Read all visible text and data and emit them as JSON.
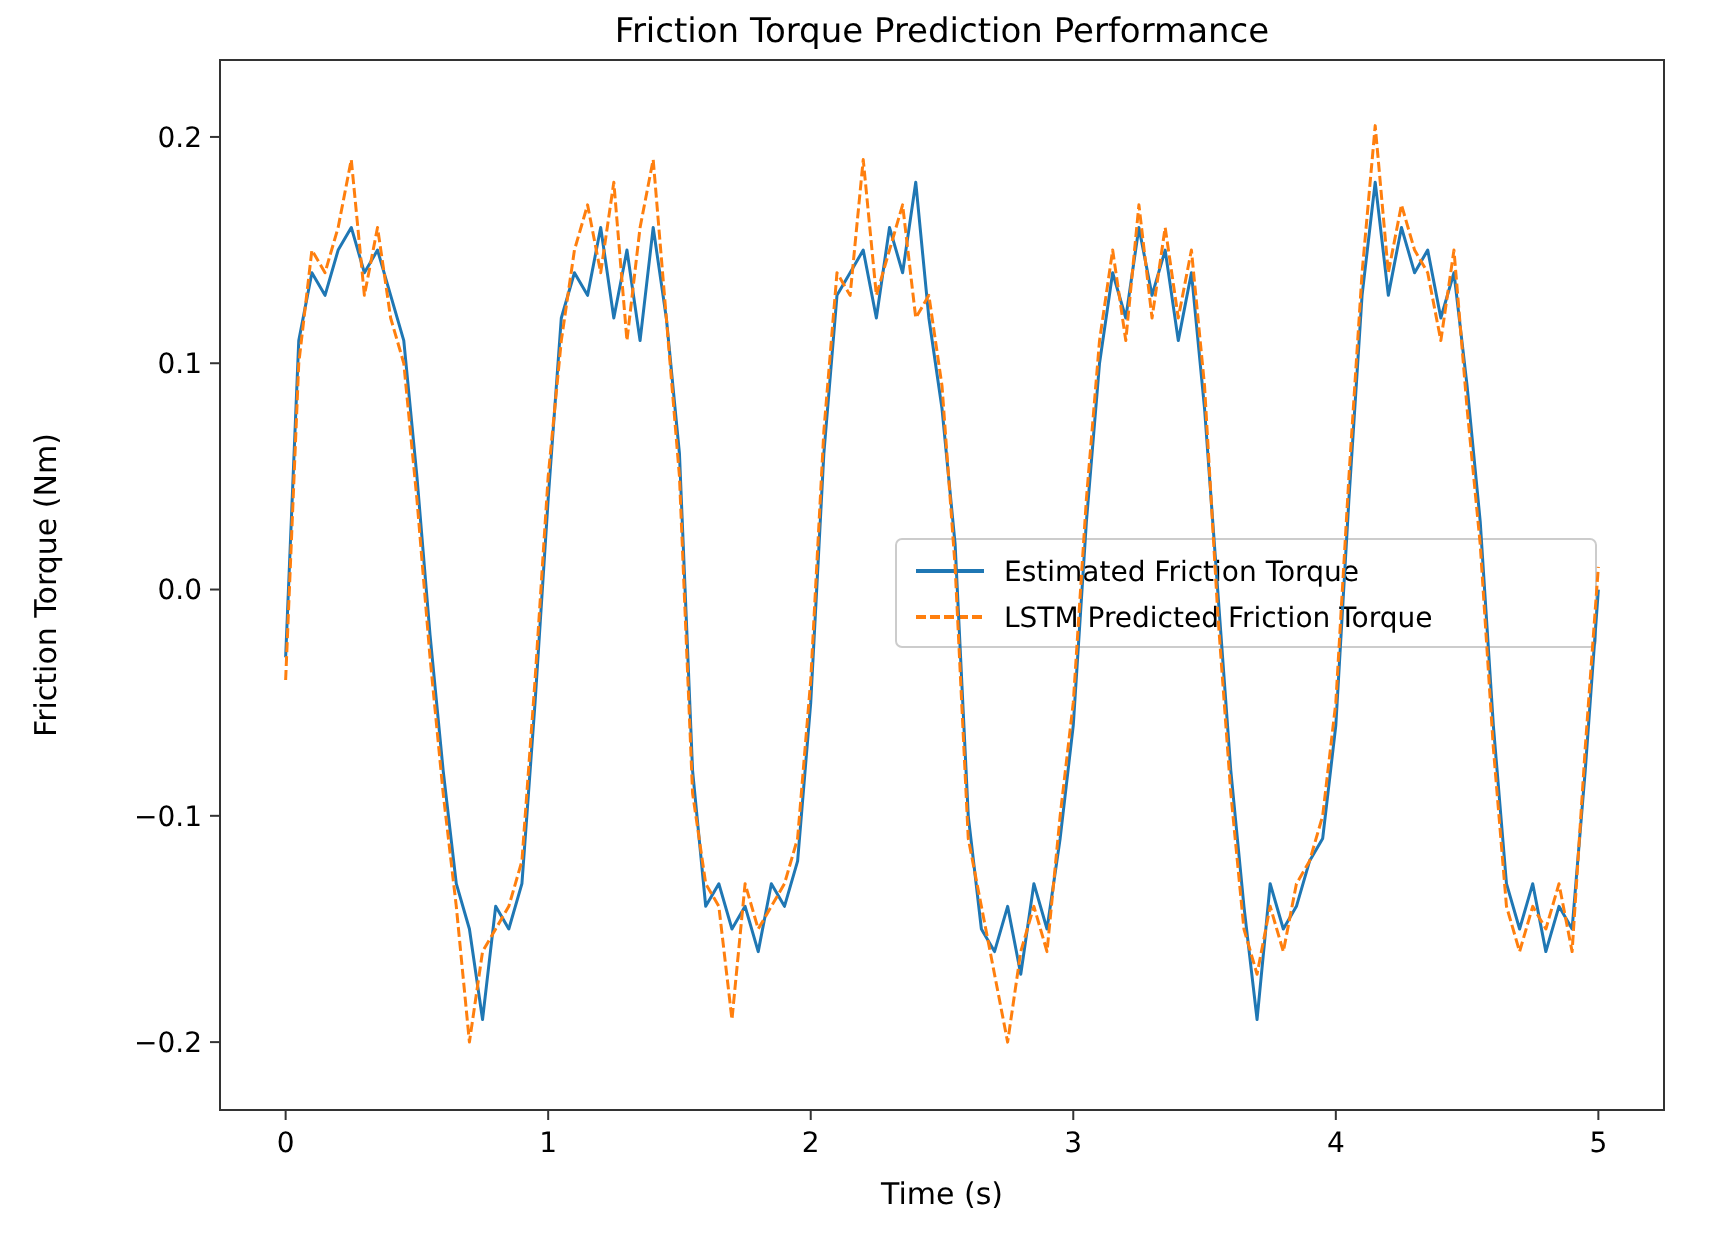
{
  "chart_data": {
    "type": "line",
    "title": "Friction Torque Prediction Performance",
    "xlabel": "Time (s)",
    "ylabel": "Friction Torque (Nm)",
    "x": [
      0,
      0.05,
      0.1,
      0.15,
      0.2,
      0.25,
      0.3,
      0.35,
      0.4,
      0.45,
      0.5,
      0.55,
      0.6,
      0.65,
      0.7,
      0.75,
      0.8,
      0.85,
      0.9,
      0.95,
      1,
      1.05,
      1.1,
      1.15,
      1.2,
      1.25,
      1.3,
      1.35,
      1.4,
      1.45,
      1.5,
      1.55,
      1.6,
      1.65,
      1.7,
      1.75,
      1.8,
      1.85,
      1.9,
      1.95,
      2,
      2.05,
      2.1,
      2.15,
      2.2,
      2.25,
      2.3,
      2.35,
      2.4,
      2.45,
      2.5,
      2.55,
      2.6,
      2.65,
      2.7,
      2.75,
      2.8,
      2.85,
      2.9,
      2.95,
      3,
      3.05,
      3.1,
      3.15,
      3.2,
      3.25,
      3.3,
      3.35,
      3.4,
      3.45,
      3.5,
      3.55,
      3.6,
      3.65,
      3.7,
      3.75,
      3.8,
      3.85,
      3.9,
      3.95,
      4,
      4.05,
      4.1,
      4.15,
      4.2,
      4.25,
      4.3,
      4.35,
      4.4,
      4.45,
      4.5,
      4.55,
      4.6,
      4.65,
      4.7,
      4.75,
      4.8,
      4.85,
      4.9,
      4.95,
      5
    ],
    "series": [
      {
        "name": "Estimated Friction Torque",
        "color": "#1f77b4",
        "line_style": "solid",
        "values": [
          -0.03,
          0.11,
          0.14,
          0.13,
          0.15,
          0.16,
          0.14,
          0.15,
          0.13,
          0.11,
          0.05,
          -0.02,
          -0.08,
          -0.13,
          -0.15,
          -0.19,
          -0.14,
          -0.15,
          -0.13,
          -0.05,
          0.04,
          0.12,
          0.14,
          0.13,
          0.16,
          0.12,
          0.15,
          0.11,
          0.16,
          0.12,
          0.06,
          -0.08,
          -0.14,
          -0.13,
          -0.15,
          -0.14,
          -0.16,
          -0.13,
          -0.14,
          -0.12,
          -0.05,
          0.06,
          0.13,
          0.14,
          0.15,
          0.12,
          0.16,
          0.14,
          0.18,
          0.12,
          0.08,
          0.02,
          -0.1,
          -0.15,
          -0.16,
          -0.14,
          -0.17,
          -0.13,
          -0.15,
          -0.11,
          -0.06,
          0.03,
          0.1,
          0.14,
          0.12,
          0.16,
          0.13,
          0.15,
          0.11,
          0.14,
          0.08,
          0,
          -0.08,
          -0.14,
          -0.19,
          -0.13,
          -0.15,
          -0.14,
          -0.12,
          -0.11,
          -0.06,
          0.04,
          0.13,
          0.18,
          0.13,
          0.16,
          0.14,
          0.15,
          0.12,
          0.14,
          0.09,
          0.03,
          -0.06,
          -0.13,
          -0.15,
          -0.13,
          -0.16,
          -0.14,
          -0.15,
          -0.08,
          0
        ]
      },
      {
        "name": "LSTM Predicted Friction Torque",
        "color": "#ff7f0e",
        "line_style": "dashed",
        "values": [
          -0.04,
          0.1,
          0.15,
          0.14,
          0.16,
          0.19,
          0.13,
          0.16,
          0.12,
          0.1,
          0.04,
          -0.03,
          -0.09,
          -0.14,
          -0.2,
          -0.16,
          -0.15,
          -0.14,
          -0.12,
          -0.04,
          0.05,
          0.11,
          0.15,
          0.17,
          0.14,
          0.18,
          0.11,
          0.16,
          0.19,
          0.12,
          0.05,
          -0.09,
          -0.13,
          -0.14,
          -0.19,
          -0.13,
          -0.15,
          -0.14,
          -0.13,
          -0.11,
          -0.04,
          0.07,
          0.14,
          0.13,
          0.19,
          0.13,
          0.15,
          0.17,
          0.12,
          0.13,
          0.09,
          0.01,
          -0.11,
          -0.14,
          -0.17,
          -0.2,
          -0.16,
          -0.14,
          -0.16,
          -0.1,
          -0.05,
          0.04,
          0.11,
          0.15,
          0.11,
          0.17,
          0.12,
          0.16,
          0.12,
          0.15,
          0.09,
          -0.01,
          -0.09,
          -0.15,
          -0.17,
          -0.14,
          -0.16,
          -0.13,
          -0.12,
          -0.1,
          -0.05,
          0.05,
          0.14,
          0.205,
          0.14,
          0.17,
          0.15,
          0.14,
          0.11,
          0.15,
          0.08,
          0.02,
          -0.07,
          -0.14,
          -0.16,
          -0.14,
          -0.15,
          -0.13,
          -0.16,
          -0.07,
          0.01
        ]
      }
    ],
    "xlim": [
      -0.25,
      5.25
    ],
    "ylim": [
      -0.23,
      0.234
    ],
    "xticks": [
      0,
      1,
      2,
      3,
      4,
      5
    ],
    "yticks": [
      {
        "value": -0.2,
        "label": "−0.2"
      },
      {
        "value": -0.1,
        "label": "−0.1"
      },
      {
        "value": 0,
        "label": "0.0"
      },
      {
        "value": 0.1,
        "label": "0.1"
      },
      {
        "value": 0.2,
        "label": "0.2"
      }
    ],
    "legend": "right",
    "grid": false
  }
}
